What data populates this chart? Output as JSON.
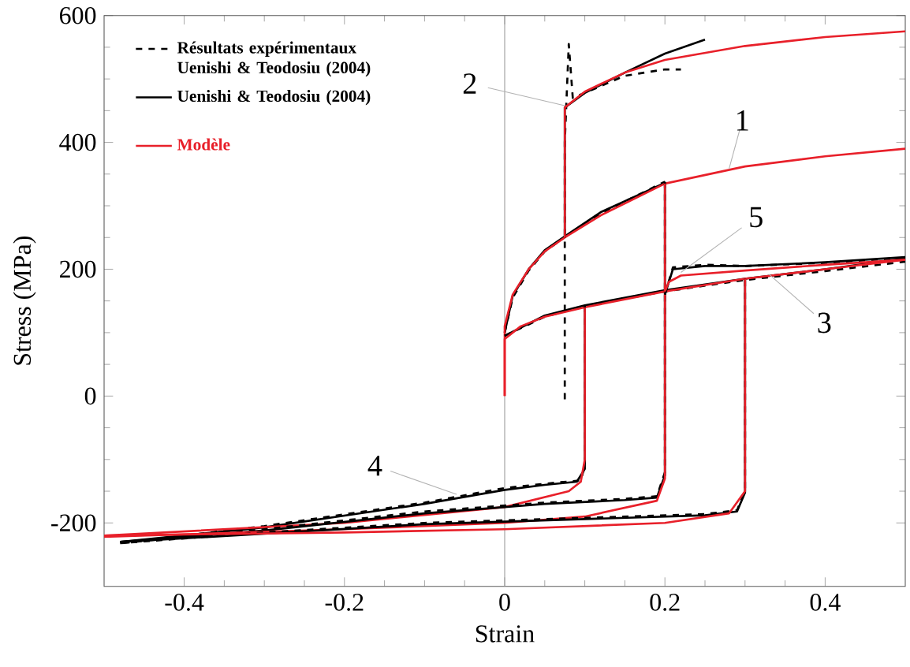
{
  "chart_data": {
    "type": "line",
    "xlabel": "Strain",
    "ylabel": "Stress (MPa)",
    "xlim": [
      -0.5,
      0.5
    ],
    "xticks": [
      -0.4,
      -0.2,
      0,
      0.2,
      0.4
    ],
    "ylim": [
      -300,
      600
    ],
    "yticks": [
      -200,
      0,
      200,
      400,
      600
    ],
    "legend": "top left",
    "grid": false,
    "ref_lines": [
      {
        "axis": "x",
        "value": 0,
        "color": "#999999"
      }
    ],
    "annotations": [
      {
        "text": "1",
        "x": 0.28,
        "y": 358
      },
      {
        "text": "2",
        "x": 0.075,
        "y": 458
      },
      {
        "text": "3",
        "x": 0.33,
        "y": 192
      },
      {
        "text": "4",
        "x": -0.06,
        "y": -155
      },
      {
        "text": "5",
        "x": 0.22,
        "y": 195
      }
    ],
    "series": [
      {
        "name": "Résultats expérimentaux Uenishi & Teodosiu (2004)",
        "color": "#000000",
        "line_style": "dashed",
        "x": [
          0,
          0.01,
          0.03,
          0.05,
          0.08,
          0.12,
          0.2
        ],
        "values": [
          100,
          155,
          198,
          228,
          255,
          288,
          338
        ]
      },
      {
        "name": "Uenishi & Teodosiu (2004)",
        "color": "#000000",
        "line_style": "solid",
        "x": [
          0,
          0.01,
          0.03,
          0.05,
          0.08,
          0.12,
          0.2
        ],
        "values": [
          100,
          158,
          200,
          230,
          256,
          290,
          336
        ]
      },
      {
        "name": "Modèle",
        "color": "#e8202a",
        "line_style": "solid",
        "x": [
          0,
          0,
          0.01,
          0.03,
          0.05,
          0.075,
          0.12,
          0.2,
          0.3,
          0.4,
          0.5
        ],
        "values": [
          0,
          110,
          160,
          200,
          228,
          250,
          285,
          335,
          362,
          378,
          390
        ]
      },
      {
        "color": "#000000",
        "line_style": "dashed",
        "x": [
          0.075,
          0.075,
          0.08,
          0.085,
          0.1,
          0.15,
          0.2,
          0.22
        ],
        "values": [
          -5,
          400,
          555,
          470,
          478,
          505,
          515,
          515
        ]
      },
      {
        "color": "#000000",
        "line_style": "solid",
        "x": [
          0.075,
          0.075,
          0.1,
          0.15,
          0.2,
          0.25
        ],
        "values": [
          250,
          455,
          478,
          510,
          540,
          562
        ]
      },
      {
        "color": "#e8202a",
        "line_style": "solid",
        "x": [
          0.075,
          0.075,
          0.1,
          0.15,
          0.2,
          0.3,
          0.4,
          0.5
        ],
        "values": [
          250,
          455,
          480,
          510,
          530,
          552,
          566,
          575
        ]
      },
      {
        "color": "#000000",
        "line_style": "dashed",
        "x": [
          0,
          0.05,
          0.1,
          0.2,
          0.3,
          0.4,
          0.5
        ],
        "values": [
          95,
          125,
          142,
          165,
          183,
          197,
          212
        ]
      },
      {
        "color": "#000000",
        "line_style": "solid",
        "x": [
          0,
          0.05,
          0.1,
          0.2,
          0.3,
          0.4,
          0.5
        ],
        "values": [
          95,
          127,
          143,
          167,
          185,
          200,
          217
        ]
      },
      {
        "color": "#e8202a",
        "line_style": "solid",
        "x": [
          0,
          0,
          0.02,
          0.05,
          0.1,
          0.2,
          0.3,
          0.4,
          0.5
        ],
        "values": [
          0,
          90,
          110,
          125,
          140,
          165,
          185,
          200,
          215
        ]
      },
      {
        "color": "#000000",
        "line_style": "dashed",
        "x": [
          0.1,
          0.1,
          0.095,
          0.06,
          0,
          -0.1,
          -0.3,
          -0.48
        ],
        "values": [
          142,
          -110,
          -133,
          -137,
          -145,
          -168,
          -205,
          -232
        ]
      },
      {
        "color": "#000000",
        "line_style": "solid",
        "x": [
          0.1,
          0.1,
          0.09,
          0.05,
          0,
          -0.1,
          -0.3,
          -0.48
        ],
        "values": [
          140,
          -115,
          -135,
          -140,
          -148,
          -170,
          -207,
          -230
        ]
      },
      {
        "color": "#e8202a",
        "line_style": "solid",
        "x": [
          0.1,
          0.1,
          0.095,
          0.08,
          0,
          -0.2,
          -0.5
        ],
        "values": [
          140,
          -100,
          -135,
          -150,
          -175,
          -200,
          -220
        ]
      },
      {
        "color": "#000000",
        "line_style": "dashed",
        "x": [
          0.2,
          0.2,
          0.19,
          0.15,
          0.05,
          -0.1,
          -0.3,
          -0.48
        ],
        "values": [
          338,
          -120,
          -158,
          -162,
          -168,
          -182,
          -210,
          -232
        ]
      },
      {
        "color": "#000000",
        "line_style": "solid",
        "x": [
          0.2,
          0.2,
          0.19,
          0.15,
          0.05,
          -0.1,
          -0.3,
          -0.48
        ],
        "values": [
          335,
          -125,
          -160,
          -164,
          -170,
          -185,
          -212,
          -230
        ]
      },
      {
        "color": "#e8202a",
        "line_style": "solid",
        "x": [
          0.2,
          0.2,
          0.19,
          0.1,
          0,
          -0.2,
          -0.5
        ],
        "values": [
          335,
          -130,
          -165,
          -190,
          -200,
          -210,
          -222
        ]
      },
      {
        "color": "#000000",
        "line_style": "dashed",
        "x": [
          0.3,
          0.3,
          0.29,
          0.25,
          0.1,
          -0.1,
          -0.3,
          -0.48
        ],
        "values": [
          183,
          -150,
          -180,
          -186,
          -192,
          -200,
          -215,
          -232
        ]
      },
      {
        "color": "#000000",
        "line_style": "solid",
        "x": [
          0.3,
          0.3,
          0.29,
          0.25,
          0.1,
          -0.1,
          -0.3,
          -0.48
        ],
        "values": [
          185,
          -152,
          -182,
          -188,
          -194,
          -202,
          -217,
          -230
        ]
      },
      {
        "color": "#e8202a",
        "line_style": "solid",
        "x": [
          0.3,
          0.3,
          0.28,
          0.2,
          0,
          -0.2,
          -0.5
        ],
        "values": [
          185,
          -150,
          -185,
          -200,
          -210,
          -215,
          -220
        ]
      },
      {
        "color": "#000000",
        "line_style": "dashed",
        "x": [
          0.2,
          0.21,
          0.25,
          0.3,
          0.4,
          0.5
        ],
        "values": [
          160,
          203,
          207,
          205,
          210,
          218
        ]
      },
      {
        "color": "#000000",
        "line_style": "solid",
        "x": [
          0.2,
          0.21,
          0.25,
          0.3,
          0.4,
          0.5
        ],
        "values": [
          160,
          200,
          205,
          205,
          211,
          219
        ]
      },
      {
        "color": "#e8202a",
        "line_style": "solid",
        "x": [
          0.2,
          0.205,
          0.22,
          0.3,
          0.4,
          0.5
        ],
        "values": [
          165,
          180,
          190,
          198,
          207,
          215
        ]
      }
    ]
  }
}
